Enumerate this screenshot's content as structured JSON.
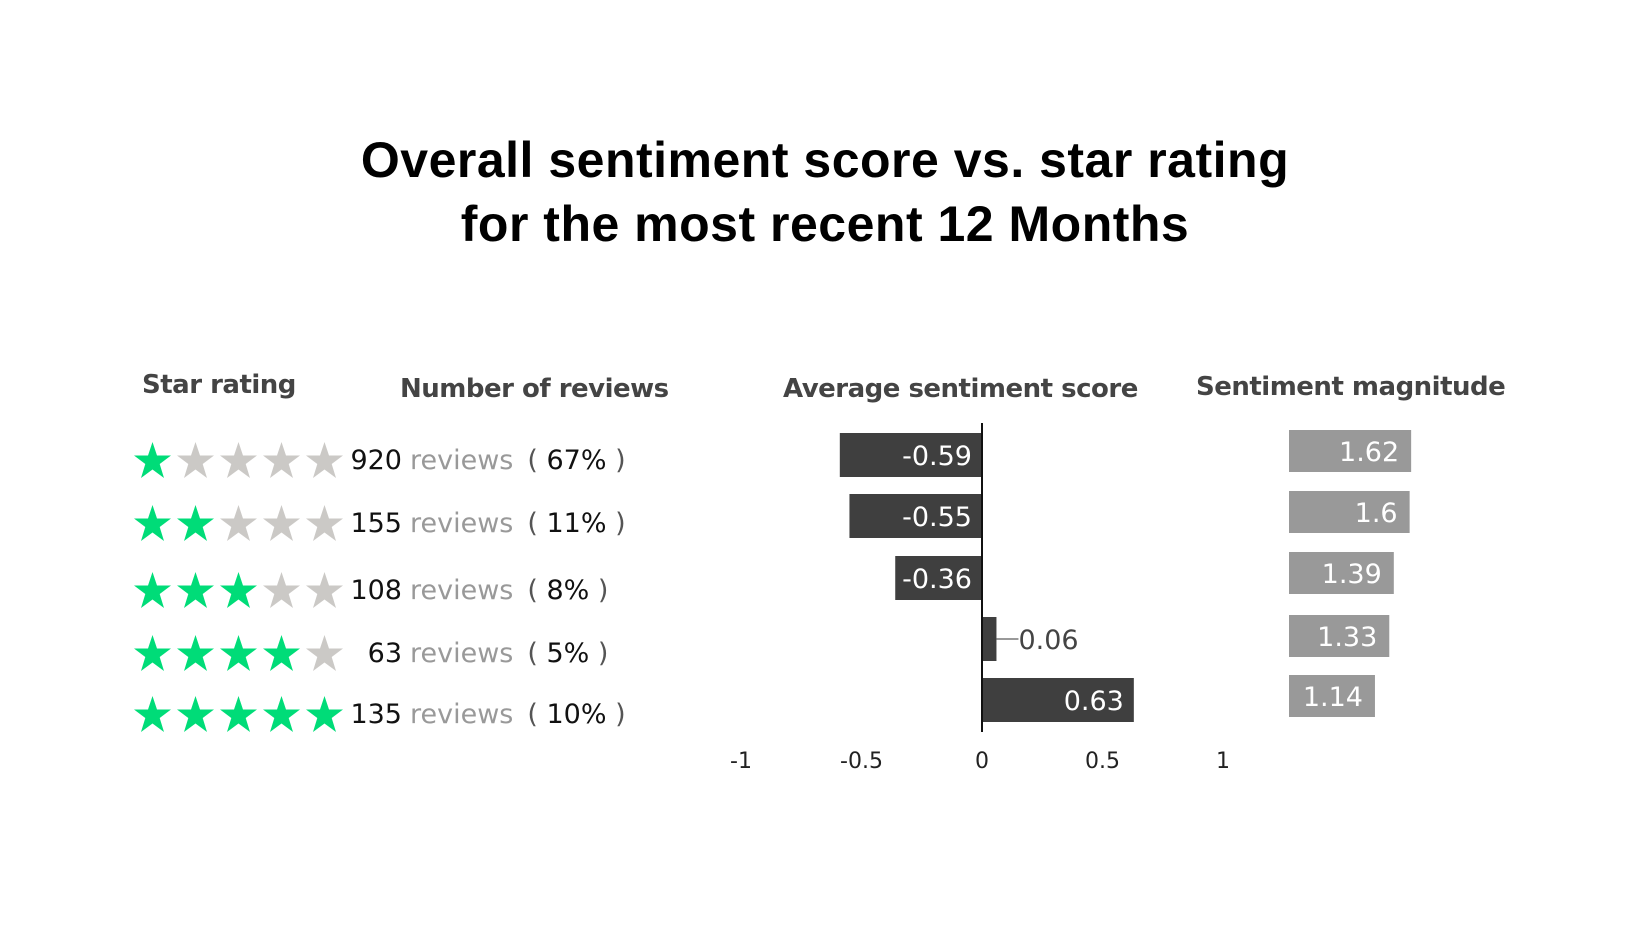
{
  "chart_data": {
    "type": "bar",
    "title": [
      "Overall sentiment score vs. star rating",
      "for the most recent 12 Months"
    ],
    "columns": {
      "star_rating": "Star rating",
      "reviews": "Number of reviews",
      "score": "Average sentiment score",
      "magnitude": "Sentiment magnitude"
    },
    "review_word": "reviews",
    "rows": [
      {
        "stars": 1,
        "reviews": "920",
        "pct": "67%",
        "score": -0.59,
        "score_label": "-0.59",
        "magnitude": 1.62,
        "magnitude_label": "1.62"
      },
      {
        "stars": 2,
        "reviews": "155",
        "pct": "11%",
        "score": -0.55,
        "score_label": "-0.55",
        "magnitude": 1.6,
        "magnitude_label": "1.6"
      },
      {
        "stars": 3,
        "reviews": "108",
        "pct": "8%",
        "score": -0.36,
        "score_label": "-0.36",
        "magnitude": 1.39,
        "magnitude_label": "1.39"
      },
      {
        "stars": 4,
        "reviews": "63",
        "pct": "5%",
        "score": 0.06,
        "score_label": "0.06",
        "magnitude": 1.33,
        "magnitude_label": "1.33"
      },
      {
        "stars": 5,
        "reviews": "135",
        "pct": "10%",
        "score": 0.63,
        "score_label": "0.63",
        "magnitude": 1.14,
        "magnitude_label": "1.14"
      }
    ],
    "score_axis": {
      "range": [
        -1,
        1
      ],
      "ticks": [
        "-1",
        "-0.5",
        "0",
        "0.5",
        "1"
      ],
      "tick_values": [
        -1,
        -0.5,
        0,
        0.5,
        1
      ]
    },
    "grid": false,
    "colors": {
      "star_filled": "#00dc78",
      "star_empty": "#cbc9c6",
      "score_bar": "#3f3f3f",
      "magnitude_bar": "#999999"
    }
  }
}
